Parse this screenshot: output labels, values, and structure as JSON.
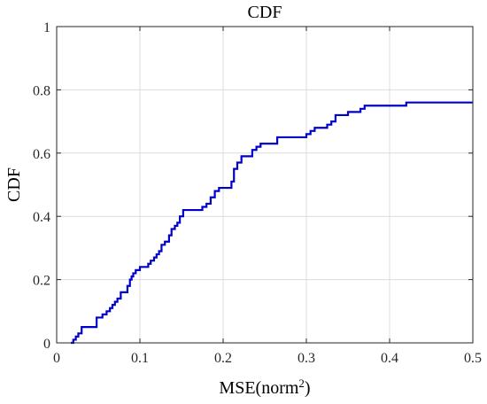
{
  "chart_data": {
    "type": "line",
    "title": "CDF",
    "xlabel": "MSE(norm",
    "xlabel_sup": "2",
    "xlabel_suffix": ")",
    "ylabel": "CDF",
    "xlim": [
      0,
      0.5
    ],
    "ylim": [
      0,
      1
    ],
    "xticks": [
      0,
      0.1,
      0.2,
      0.3,
      0.4,
      0.5
    ],
    "xtick_labels": [
      "0",
      "0.1",
      "0.2",
      "0.3",
      "0.4",
      "0.5"
    ],
    "yticks": [
      0,
      0.2,
      0.4,
      0.6,
      0.8,
      1
    ],
    "ytick_labels": [
      "0",
      "0.2",
      "0.4",
      "0.6",
      "0.8",
      "1"
    ],
    "grid": true,
    "series": [
      {
        "color": "#0000cc",
        "step": true,
        "x": [
          0.017,
          0.02,
          0.023,
          0.026,
          0.03,
          0.048,
          0.055,
          0.06,
          0.064,
          0.067,
          0.07,
          0.073,
          0.077,
          0.085,
          0.088,
          0.09,
          0.092,
          0.095,
          0.1,
          0.11,
          0.113,
          0.117,
          0.12,
          0.123,
          0.126,
          0.13,
          0.135,
          0.138,
          0.142,
          0.145,
          0.148,
          0.152,
          0.155,
          0.175,
          0.18,
          0.185,
          0.19,
          0.195,
          0.2,
          0.21,
          0.213,
          0.217,
          0.222,
          0.225,
          0.235,
          0.24,
          0.245,
          0.25,
          0.265,
          0.3,
          0.305,
          0.31,
          0.325,
          0.33,
          0.335,
          0.35,
          0.365,
          0.37,
          0.375,
          0.42,
          0.5
        ],
        "y": [
          0.0,
          0.01,
          0.02,
          0.03,
          0.05,
          0.08,
          0.09,
          0.1,
          0.11,
          0.12,
          0.13,
          0.14,
          0.16,
          0.18,
          0.2,
          0.21,
          0.22,
          0.23,
          0.24,
          0.25,
          0.26,
          0.27,
          0.28,
          0.29,
          0.31,
          0.32,
          0.34,
          0.36,
          0.37,
          0.38,
          0.4,
          0.42,
          0.42,
          0.43,
          0.44,
          0.46,
          0.48,
          0.49,
          0.49,
          0.51,
          0.55,
          0.57,
          0.59,
          0.59,
          0.61,
          0.62,
          0.63,
          0.63,
          0.65,
          0.66,
          0.67,
          0.68,
          0.69,
          0.7,
          0.72,
          0.73,
          0.74,
          0.75,
          0.75,
          0.76,
          0.76
        ]
      }
    ]
  }
}
